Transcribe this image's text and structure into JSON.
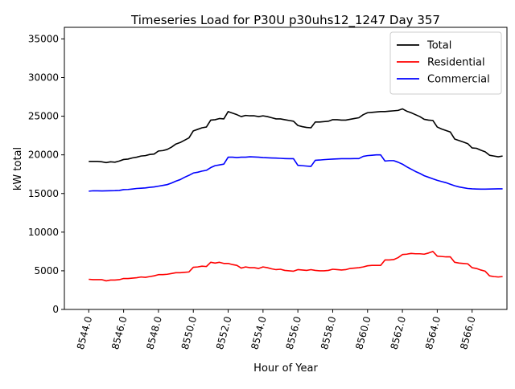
{
  "chart_data": {
    "type": "line",
    "title": "Timeseries Load for P30U p30uhs12_1247  Day 357",
    "xlabel": "Hour of Year",
    "ylabel": "kW total",
    "xlim": [
      8542.6,
      8568.0
    ],
    "ylim": [
      0,
      36500
    ],
    "x_ticks": [
      8544.0,
      8546.0,
      8548.0,
      8550.0,
      8552.0,
      8554.0,
      8556.0,
      8558.0,
      8560.0,
      8562.0,
      8564.0,
      8566.0
    ],
    "x_tick_labels": [
      "8544.0",
      "8546.0",
      "8548.0",
      "8550.0",
      "8552.0",
      "8554.0",
      "8556.0",
      "8558.0",
      "8560.0",
      "8562.0",
      "8564.0",
      "8566.0"
    ],
    "y_ticks": [
      0,
      5000,
      10000,
      15000,
      20000,
      25000,
      30000,
      35000
    ],
    "y_tick_labels": [
      "0",
      "5000",
      "10000",
      "15000",
      "20000",
      "25000",
      "30000",
      "35000"
    ],
    "grid": false,
    "legend_position": "top-right",
    "series": [
      {
        "name": "Total",
        "color": "#000000",
        "points": [
          [
            8544.0,
            19150
          ],
          [
            8544.5,
            19150
          ],
          [
            8544.75,
            19100
          ],
          [
            8545.0,
            19000
          ],
          [
            8545.25,
            19100
          ],
          [
            8545.5,
            19050
          ],
          [
            8545.75,
            19200
          ],
          [
            8546.0,
            19400
          ],
          [
            8546.25,
            19450
          ],
          [
            8546.5,
            19600
          ],
          [
            8546.75,
            19700
          ],
          [
            8547.0,
            19850
          ],
          [
            8547.25,
            19900
          ],
          [
            8547.5,
            20050
          ],
          [
            8547.75,
            20100
          ],
          [
            8548.0,
            20500
          ],
          [
            8548.25,
            20550
          ],
          [
            8548.5,
            20700
          ],
          [
            8548.75,
            21000
          ],
          [
            8549.0,
            21400
          ],
          [
            8549.25,
            21600
          ],
          [
            8549.5,
            21900
          ],
          [
            8549.75,
            22200
          ],
          [
            8550.0,
            23100
          ],
          [
            8550.25,
            23300
          ],
          [
            8550.5,
            23500
          ],
          [
            8550.75,
            23600
          ],
          [
            8551.0,
            24500
          ],
          [
            8551.25,
            24550
          ],
          [
            8551.5,
            24700
          ],
          [
            8551.75,
            24650
          ],
          [
            8552.0,
            25600
          ],
          [
            8552.25,
            25400
          ],
          [
            8552.5,
            25200
          ],
          [
            8552.75,
            24950
          ],
          [
            8553.0,
            25100
          ],
          [
            8553.25,
            25050
          ],
          [
            8553.5,
            25050
          ],
          [
            8553.75,
            24950
          ],
          [
            8554.0,
            25050
          ],
          [
            8554.25,
            24950
          ],
          [
            8554.5,
            24800
          ],
          [
            8554.75,
            24650
          ],
          [
            8555.0,
            24650
          ],
          [
            8555.25,
            24550
          ],
          [
            8555.5,
            24450
          ],
          [
            8555.75,
            24350
          ],
          [
            8556.0,
            23800
          ],
          [
            8556.25,
            23650
          ],
          [
            8556.5,
            23550
          ],
          [
            8556.75,
            23500
          ],
          [
            8557.0,
            24250
          ],
          [
            8557.25,
            24250
          ],
          [
            8557.5,
            24300
          ],
          [
            8557.75,
            24350
          ],
          [
            8558.0,
            24550
          ],
          [
            8558.25,
            24550
          ],
          [
            8558.5,
            24500
          ],
          [
            8558.75,
            24500
          ],
          [
            8559.0,
            24600
          ],
          [
            8559.25,
            24700
          ],
          [
            8559.5,
            24800
          ],
          [
            8559.75,
            25200
          ],
          [
            8560.0,
            25450
          ],
          [
            8560.25,
            25500
          ],
          [
            8560.5,
            25550
          ],
          [
            8560.75,
            25600
          ],
          [
            8561.0,
            25600
          ],
          [
            8561.25,
            25650
          ],
          [
            8561.5,
            25700
          ],
          [
            8561.75,
            25750
          ],
          [
            8562.0,
            25950
          ],
          [
            8562.25,
            25650
          ],
          [
            8562.5,
            25450
          ],
          [
            8562.75,
            25200
          ],
          [
            8563.0,
            24950
          ],
          [
            8563.25,
            24600
          ],
          [
            8563.5,
            24500
          ],
          [
            8563.75,
            24450
          ],
          [
            8564.0,
            23600
          ],
          [
            8564.25,
            23350
          ],
          [
            8564.5,
            23150
          ],
          [
            8564.75,
            22950
          ],
          [
            8565.0,
            22050
          ],
          [
            8565.25,
            21850
          ],
          [
            8565.5,
            21650
          ],
          [
            8565.75,
            21450
          ],
          [
            8566.0,
            20900
          ],
          [
            8566.25,
            20850
          ],
          [
            8566.5,
            20600
          ],
          [
            8566.75,
            20400
          ],
          [
            8567.0,
            19950
          ],
          [
            8567.25,
            19850
          ],
          [
            8567.5,
            19750
          ],
          [
            8567.75,
            19850
          ]
        ]
      },
      {
        "name": "Residential",
        "color": "#ff0000",
        "points": [
          [
            8544.0,
            3900
          ],
          [
            8544.25,
            3850
          ],
          [
            8544.5,
            3850
          ],
          [
            8544.75,
            3850
          ],
          [
            8545.0,
            3700
          ],
          [
            8545.25,
            3800
          ],
          [
            8545.5,
            3800
          ],
          [
            8545.75,
            3850
          ],
          [
            8546.0,
            4000
          ],
          [
            8546.25,
            4000
          ],
          [
            8546.5,
            4050
          ],
          [
            8546.75,
            4100
          ],
          [
            8547.0,
            4200
          ],
          [
            8547.25,
            4150
          ],
          [
            8547.5,
            4250
          ],
          [
            8547.75,
            4350
          ],
          [
            8548.0,
            4500
          ],
          [
            8548.25,
            4500
          ],
          [
            8548.5,
            4550
          ],
          [
            8548.75,
            4650
          ],
          [
            8549.0,
            4750
          ],
          [
            8549.25,
            4750
          ],
          [
            8549.5,
            4800
          ],
          [
            8549.75,
            4850
          ],
          [
            8550.0,
            5450
          ],
          [
            8550.25,
            5500
          ],
          [
            8550.5,
            5600
          ],
          [
            8550.75,
            5550
          ],
          [
            8551.0,
            6100
          ],
          [
            8551.25,
            6000
          ],
          [
            8551.5,
            6100
          ],
          [
            8551.75,
            5950
          ],
          [
            8552.0,
            5950
          ],
          [
            8552.25,
            5800
          ],
          [
            8552.5,
            5700
          ],
          [
            8552.75,
            5350
          ],
          [
            8553.0,
            5500
          ],
          [
            8553.25,
            5400
          ],
          [
            8553.5,
            5400
          ],
          [
            8553.75,
            5300
          ],
          [
            8554.0,
            5500
          ],
          [
            8554.25,
            5400
          ],
          [
            8554.5,
            5250
          ],
          [
            8554.75,
            5150
          ],
          [
            8555.0,
            5200
          ],
          [
            8555.25,
            5050
          ],
          [
            8555.5,
            5000
          ],
          [
            8555.75,
            4950
          ],
          [
            8556.0,
            5150
          ],
          [
            8556.25,
            5100
          ],
          [
            8556.5,
            5050
          ],
          [
            8556.75,
            5150
          ],
          [
            8557.0,
            5050
          ],
          [
            8557.25,
            5000
          ],
          [
            8557.5,
            5000
          ],
          [
            8557.75,
            5050
          ],
          [
            8558.0,
            5200
          ],
          [
            8558.25,
            5150
          ],
          [
            8558.5,
            5100
          ],
          [
            8558.75,
            5150
          ],
          [
            8559.0,
            5300
          ],
          [
            8559.25,
            5350
          ],
          [
            8559.5,
            5400
          ],
          [
            8559.75,
            5500
          ],
          [
            8560.0,
            5650
          ],
          [
            8560.25,
            5700
          ],
          [
            8560.5,
            5700
          ],
          [
            8560.75,
            5700
          ],
          [
            8561.0,
            6400
          ],
          [
            8561.25,
            6400
          ],
          [
            8561.5,
            6450
          ],
          [
            8561.75,
            6700
          ],
          [
            8562.0,
            7100
          ],
          [
            8562.25,
            7150
          ],
          [
            8562.5,
            7250
          ],
          [
            8562.75,
            7200
          ],
          [
            8563.0,
            7200
          ],
          [
            8563.25,
            7150
          ],
          [
            8563.5,
            7300
          ],
          [
            8563.75,
            7500
          ],
          [
            8564.0,
            6900
          ],
          [
            8564.25,
            6850
          ],
          [
            8564.5,
            6800
          ],
          [
            8564.75,
            6800
          ],
          [
            8565.0,
            6100
          ],
          [
            8565.25,
            6000
          ],
          [
            8565.5,
            5950
          ],
          [
            8565.75,
            5900
          ],
          [
            8566.0,
            5400
          ],
          [
            8566.25,
            5300
          ],
          [
            8566.5,
            5100
          ],
          [
            8566.75,
            4950
          ],
          [
            8567.0,
            4350
          ],
          [
            8567.25,
            4250
          ],
          [
            8567.5,
            4200
          ],
          [
            8567.75,
            4250
          ]
        ]
      },
      {
        "name": "Commercial",
        "color": "#0000ff",
        "points": [
          [
            8544.0,
            15300
          ],
          [
            8544.25,
            15350
          ],
          [
            8544.5,
            15350
          ],
          [
            8544.75,
            15330
          ],
          [
            8545.0,
            15350
          ],
          [
            8545.25,
            15360
          ],
          [
            8545.5,
            15370
          ],
          [
            8545.75,
            15400
          ],
          [
            8546.0,
            15500
          ],
          [
            8546.25,
            15520
          ],
          [
            8546.5,
            15580
          ],
          [
            8546.75,
            15650
          ],
          [
            8547.0,
            15680
          ],
          [
            8547.25,
            15720
          ],
          [
            8547.5,
            15800
          ],
          [
            8547.75,
            15850
          ],
          [
            8548.0,
            15950
          ],
          [
            8548.25,
            16050
          ],
          [
            8548.5,
            16150
          ],
          [
            8548.75,
            16350
          ],
          [
            8549.0,
            16600
          ],
          [
            8549.25,
            16800
          ],
          [
            8549.5,
            17100
          ],
          [
            8549.75,
            17350
          ],
          [
            8550.0,
            17650
          ],
          [
            8550.25,
            17750
          ],
          [
            8550.5,
            17900
          ],
          [
            8550.75,
            18000
          ],
          [
            8551.0,
            18350
          ],
          [
            8551.25,
            18600
          ],
          [
            8551.5,
            18700
          ],
          [
            8551.75,
            18800
          ],
          [
            8552.0,
            19700
          ],
          [
            8552.25,
            19700
          ],
          [
            8552.5,
            19650
          ],
          [
            8552.75,
            19700
          ],
          [
            8553.0,
            19700
          ],
          [
            8553.25,
            19750
          ],
          [
            8553.5,
            19720
          ],
          [
            8553.75,
            19700
          ],
          [
            8554.0,
            19650
          ],
          [
            8554.25,
            19620
          ],
          [
            8554.5,
            19600
          ],
          [
            8554.75,
            19580
          ],
          [
            8555.0,
            19550
          ],
          [
            8555.25,
            19520
          ],
          [
            8555.5,
            19500
          ],
          [
            8555.75,
            19500
          ],
          [
            8556.0,
            18650
          ],
          [
            8556.25,
            18600
          ],
          [
            8556.5,
            18550
          ],
          [
            8556.75,
            18500
          ],
          [
            8557.0,
            19300
          ],
          [
            8557.25,
            19330
          ],
          [
            8557.5,
            19380
          ],
          [
            8557.75,
            19420
          ],
          [
            8558.0,
            19450
          ],
          [
            8558.25,
            19480
          ],
          [
            8558.5,
            19500
          ],
          [
            8558.75,
            19500
          ],
          [
            8559.0,
            19500
          ],
          [
            8559.25,
            19520
          ],
          [
            8559.5,
            19520
          ],
          [
            8559.75,
            19800
          ],
          [
            8560.0,
            19900
          ],
          [
            8560.25,
            19950
          ],
          [
            8560.5,
            20000
          ],
          [
            8560.75,
            20000
          ],
          [
            8561.0,
            19200
          ],
          [
            8561.25,
            19250
          ],
          [
            8561.5,
            19250
          ],
          [
            8561.75,
            19050
          ],
          [
            8562.0,
            18800
          ],
          [
            8562.25,
            18450
          ],
          [
            8562.5,
            18150
          ],
          [
            8562.75,
            17850
          ],
          [
            8563.0,
            17600
          ],
          [
            8563.25,
            17300
          ],
          [
            8563.5,
            17100
          ],
          [
            8563.75,
            16900
          ],
          [
            8564.0,
            16700
          ],
          [
            8564.25,
            16550
          ],
          [
            8564.5,
            16400
          ],
          [
            8564.75,
            16200
          ],
          [
            8565.0,
            16000
          ],
          [
            8565.25,
            15850
          ],
          [
            8565.5,
            15750
          ],
          [
            8565.75,
            15650
          ],
          [
            8566.0,
            15600
          ],
          [
            8566.25,
            15580
          ],
          [
            8566.5,
            15570
          ],
          [
            8566.75,
            15570
          ],
          [
            8567.0,
            15580
          ],
          [
            8567.25,
            15590
          ],
          [
            8567.5,
            15600
          ],
          [
            8567.75,
            15600
          ]
        ]
      }
    ]
  }
}
